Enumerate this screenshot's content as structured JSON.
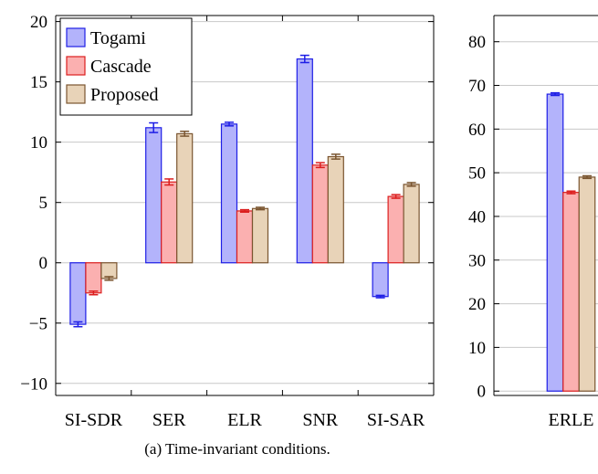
{
  "caption": "(a) Time-invariant conditions.",
  "colors": {
    "Togami": {
      "fill": "#b3b3fb",
      "stroke": "#1e1ee6"
    },
    "Cascade": {
      "fill": "#fbb0b0",
      "stroke": "#dc1e1e"
    },
    "Proposed": {
      "fill": "#e8d3b8",
      "stroke": "#7a5530"
    }
  },
  "chart_data": [
    {
      "type": "bar",
      "categories": [
        "SI-SDR",
        "SER",
        "ELR",
        "SNR",
        "SI-SAR"
      ],
      "series": [
        {
          "name": "Togami",
          "values": [
            -5.1,
            11.2,
            11.5,
            16.9,
            -2.8
          ],
          "errors": [
            0.2,
            0.4,
            0.15,
            0.3,
            0.1
          ]
        },
        {
          "name": "Cascade",
          "values": [
            -2.5,
            6.7,
            4.3,
            8.1,
            5.5
          ],
          "errors": [
            0.15,
            0.25,
            0.1,
            0.2,
            0.15
          ]
        },
        {
          "name": "Proposed",
          "values": [
            -1.3,
            10.7,
            4.5,
            8.8,
            6.5
          ],
          "errors": [
            0.15,
            0.2,
            0.1,
            0.2,
            0.15
          ]
        }
      ],
      "ylim": [
        -11,
        20.5
      ],
      "yticks": [
        -10,
        -5,
        0,
        5,
        10,
        15,
        20
      ],
      "ytick_labels": [
        "−10",
        "−5",
        "0",
        "5",
        "10",
        "15",
        "20"
      ],
      "legend": [
        "Togami",
        "Cascade",
        "Proposed"
      ],
      "legend_position": "top-left",
      "grid": "horizontal"
    },
    {
      "type": "bar",
      "categories": [
        "ERLE"
      ],
      "series": [
        {
          "name": "Togami",
          "values": [
            68
          ],
          "errors": [
            0.3
          ]
        },
        {
          "name": "Cascade",
          "values": [
            45.5
          ],
          "errors": [
            0.3
          ]
        },
        {
          "name": "Proposed",
          "values": [
            49
          ],
          "errors": [
            0.3
          ]
        }
      ],
      "ylim": [
        -1,
        86
      ],
      "yticks": [
        0,
        10,
        20,
        30,
        40,
        50,
        60,
        70,
        80
      ],
      "ytick_labels": [
        "0",
        "10",
        "20",
        "30",
        "40",
        "50",
        "60",
        "70",
        "80"
      ],
      "grid": "horizontal"
    }
  ]
}
